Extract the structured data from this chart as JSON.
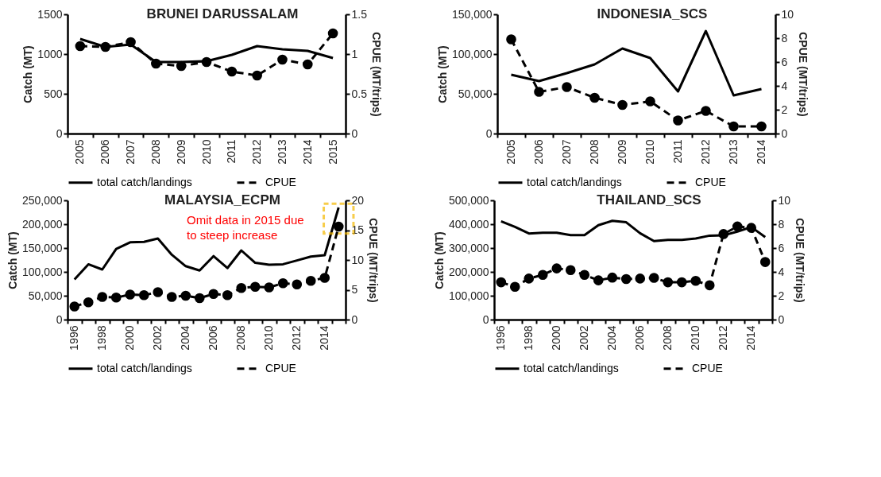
{
  "chart_data": [
    {
      "type": "line",
      "title": "BRUNEI DARUSSALAM",
      "ylabel": "Catch (MT)",
      "y2label": "CPUE (MT/trips)",
      "categories": [
        "2005",
        "2006",
        "2007",
        "2008",
        "2009",
        "2010",
        "2011",
        "2012",
        "2013",
        "2014",
        "2015"
      ],
      "series": [
        {
          "name": "total catch/landings",
          "color": "#000000",
          "line_style": "solid",
          "marker": "none",
          "values": [
            1190,
            1090,
            1120,
            900,
            900,
            910,
            990,
            1100,
            1060,
            1040,
            950
          ]
        },
        {
          "name": "CPUE",
          "color": "#000000",
          "axis": "y2",
          "line_style": "dashed",
          "marker": "circle",
          "values": [
            1.1,
            1.09,
            1.15,
            0.88,
            0.85,
            0.9,
            0.78,
            0.73,
            0.93,
            0.87,
            1.26
          ]
        }
      ],
      "ylim": [
        0,
        1500
      ],
      "yticks": [
        0,
        500,
        1000,
        1500
      ],
      "y2lim": [
        0,
        1.5
      ],
      "y2ticks": [
        0,
        0.5,
        1,
        1.5
      ],
      "grid": false,
      "legend": "bottom"
    },
    {
      "type": "line",
      "title": "INDONESIA_SCS",
      "ylabel": "Catch (MT)",
      "y2label": "CPUE (MT/trips)",
      "categories": [
        "2005",
        "2006",
        "2007",
        "2008",
        "2009",
        "2010",
        "2011",
        "2012",
        "2013",
        "2014"
      ],
      "series": [
        {
          "name": "total catch/landings",
          "color": "#000000",
          "line_style": "solid",
          "marker": "none",
          "values": [
            74000,
            66000,
            76000,
            87000,
            107000,
            95000,
            53000,
            129000,
            48000,
            56000
          ]
        },
        {
          "name": "CPUE",
          "color": "#000000",
          "axis": "y2",
          "line_style": "dashed",
          "marker": "circle",
          "values": [
            7.9,
            3.5,
            3.9,
            3.0,
            2.4,
            2.7,
            1.1,
            1.9,
            0.6,
            0.6
          ]
        }
      ],
      "ylim": [
        0,
        150000
      ],
      "yticks": [
        0,
        {
          "value": 50000,
          "label": "50,000"
        },
        {
          "value": 100000,
          "label": "100,000"
        },
        {
          "value": 150000,
          "label": "150,000"
        }
      ],
      "y2lim": [
        0,
        10
      ],
      "y2ticks": [
        0,
        2,
        4,
        6,
        8,
        10
      ],
      "grid": false,
      "legend": "bottom"
    },
    {
      "type": "line",
      "title": "MALAYSIA_ECPM",
      "ylabel": "Catch (MT)",
      "y2label": "CPUE (MT/trips)",
      "categories": [
        "1996",
        null,
        "1998",
        null,
        "2000",
        null,
        "2002",
        null,
        "2004",
        null,
        "2006",
        null,
        "2008",
        null,
        "2010",
        null,
        "2012",
        null,
        "2014",
        null
      ],
      "series": [
        {
          "name": "total catch/landings",
          "color": "#000000",
          "line_style": "solid",
          "marker": "none",
          "values": [
            84000,
            116000,
            105000,
            148000,
            162000,
            163000,
            170000,
            136000,
            112000,
            103000,
            133000,
            108000,
            145000,
            119000,
            115000,
            116000,
            124000,
            132000,
            135000,
            235000
          ]
        },
        {
          "name": "CPUE",
          "color": "#000000",
          "axis": "y2",
          "line_style": "dashed",
          "marker": "circle",
          "values": [
            2.2,
            2.9,
            3.8,
            3.7,
            4.2,
            4.1,
            4.6,
            3.8,
            4.0,
            3.6,
            4.3,
            4.1,
            5.3,
            5.5,
            5.4,
            6.1,
            5.9,
            6.5,
            7.0,
            15.6
          ]
        }
      ],
      "ylim": [
        0,
        250000
      ],
      "yticks": [
        0,
        {
          "value": 50000,
          "label": "50,000"
        },
        {
          "value": 100000,
          "label": "100,000"
        },
        {
          "value": 150000,
          "label": "150,000"
        },
        {
          "value": 200000,
          "label": "200,000"
        },
        {
          "value": 250000,
          "label": "250,000"
        }
      ],
      "y2lim": [
        0,
        20
      ],
      "y2ticks": [
        0,
        5,
        10,
        15,
        20
      ],
      "grid": false,
      "legend": "bottom",
      "annotations": [
        "Omit data in 2015  due to steep increase"
      ]
    },
    {
      "type": "line",
      "title": "THAILAND_SCS",
      "ylabel": "Catch (MT)",
      "y2label": "CPUE (MT/trips)",
      "categories": [
        "1996",
        null,
        "1998",
        null,
        "2000",
        null,
        "2002",
        null,
        "2004",
        null,
        "2006",
        null,
        "2008",
        null,
        "2010",
        null,
        "2012",
        null,
        "2014",
        null
      ],
      "series": [
        {
          "name": "total catch/landings",
          "color": "#000000",
          "line_style": "solid",
          "marker": "none",
          "values": [
            412000,
            389000,
            361000,
            364000,
            364000,
            354000,
            354000,
            396000,
            414000,
            408000,
            362000,
            329000,
            334000,
            334000,
            340000,
            352000,
            353000,
            369000,
            388000,
            346000
          ]
        },
        {
          "name": "CPUE",
          "color": "#000000",
          "axis": "y2",
          "line_style": "dashed",
          "marker": "circle",
          "values": [
            3.13,
            2.75,
            3.44,
            3.75,
            4.29,
            4.15,
            3.75,
            3.29,
            3.52,
            3.4,
            3.44,
            3.5,
            3.13,
            3.13,
            3.25,
            2.88,
            7.17,
            7.81,
            7.69,
            4.83
          ]
        }
      ],
      "ylim": [
        0,
        500000
      ],
      "yticks": [
        0,
        {
          "value": 100000,
          "label": "100,000"
        },
        {
          "value": 200000,
          "label": "200,000"
        },
        {
          "value": 300000,
          "label": "300,000"
        },
        {
          "value": 400000,
          "label": "400,000"
        },
        {
          "value": 500000,
          "label": "500,000"
        }
      ],
      "y2lim": [
        0,
        10
      ],
      "y2ticks": [
        0,
        2,
        4,
        6,
        8,
        10
      ],
      "grid": false,
      "legend": "bottom"
    }
  ]
}
